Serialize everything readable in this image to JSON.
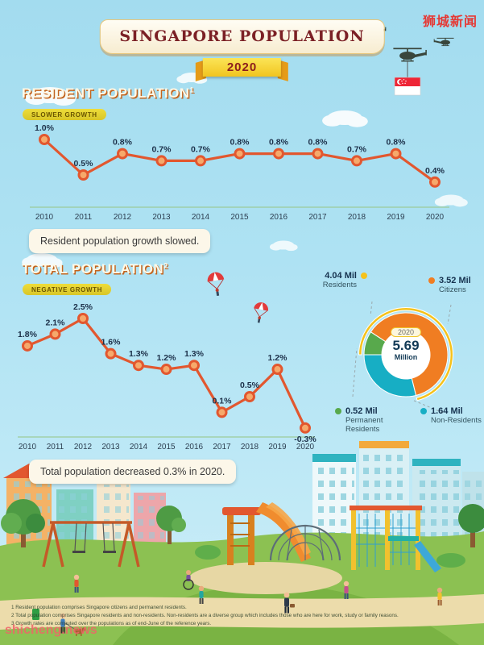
{
  "colors": {
    "line": "#E2572F",
    "dot_fill": "#F6A96B",
    "label_text": "#1C3049",
    "baseline": "#9CCB9A",
    "citizens": "#F07D22",
    "permanent_residents": "#58A94C",
    "non_residents": "#17AEC4",
    "residents_ring": "#F5C21C"
  },
  "watermarks": {
    "top_right": "狮城新闻",
    "bottom_left": "shicheng.news"
  },
  "header": {
    "title": "SINGAPORE POPULATION",
    "year": "2020"
  },
  "resident_section": {
    "heading": "RESIDENT POPULATION",
    "footnote_ref": "1",
    "badge": "SLOWER GROWTH",
    "caption": "Resident population growth slowed."
  },
  "total_section": {
    "heading": "TOTAL POPULATION",
    "footnote_ref": "2",
    "badge": "NEGATIVE GROWTH",
    "caption": "Total population decreased 0.3% in 2020."
  },
  "chart_data": [
    {
      "type": "line",
      "title": "Resident population growth (%)",
      "x": [
        "2010",
        "2011",
        "2012",
        "2013",
        "2014",
        "2015",
        "2016",
        "2017",
        "2018",
        "2019",
        "2020"
      ],
      "values": [
        1.0,
        0.5,
        0.8,
        0.7,
        0.7,
        0.8,
        0.8,
        0.8,
        0.7,
        0.8,
        0.4
      ],
      "labels": [
        "1.0%",
        "0.5%",
        "0.8%",
        "0.7%",
        "0.7%",
        "0.8%",
        "0.8%",
        "0.8%",
        "0.7%",
        "0.8%",
        "0.4%"
      ],
      "ylim": [
        0.3,
        1.1
      ],
      "grid": false,
      "legend_position": "none"
    },
    {
      "type": "line",
      "title": "Total population growth (%)",
      "x": [
        "2010",
        "2011",
        "2012",
        "2013",
        "2014",
        "2015",
        "2016",
        "2017",
        "2018",
        "2019",
        "2020"
      ],
      "values": [
        1.8,
        2.1,
        2.5,
        1.6,
        1.3,
        1.2,
        1.3,
        0.1,
        0.5,
        1.2,
        -0.3
      ],
      "labels": [
        "1.8%",
        "2.1%",
        "2.5%",
        "1.6%",
        "1.3%",
        "1.2%",
        "1.3%",
        "0.1%",
        "0.5%",
        "1.2%",
        "-0.3%"
      ],
      "ylim": [
        -0.5,
        2.7
      ],
      "grid": false,
      "legend_position": "none"
    },
    {
      "type": "pie",
      "title": "Total population 2020 (millions)",
      "center": {
        "year": "2020",
        "value": "5.69",
        "unit": "Million"
      },
      "slices": [
        {
          "name": "Permanent Residents",
          "value": 0.52,
          "value_label": "0.52 Mil",
          "color": "#58A94C"
        },
        {
          "name": "Citizens",
          "value": 3.52,
          "value_label": "3.52 Mil",
          "color": "#F07D22"
        },
        {
          "name": "Non-Residents",
          "value": 1.64,
          "value_label": "1.64 Mil",
          "color": "#17AEC4"
        }
      ],
      "overlay_ring": {
        "name": "Residents",
        "value": 4.04,
        "value_label": "4.04 Mil",
        "color": "#F5C21C"
      }
    }
  ],
  "footnotes": [
    "1 Resident population comprises Singapore citizens and permanent residents.",
    "2 Total population comprises Singapore residents and non-residents. Non-residents are a diverse group which includes those who are here for work, study or family reasons.",
    "3 Growth rates are computed over the populations as of end-June of the reference years."
  ]
}
